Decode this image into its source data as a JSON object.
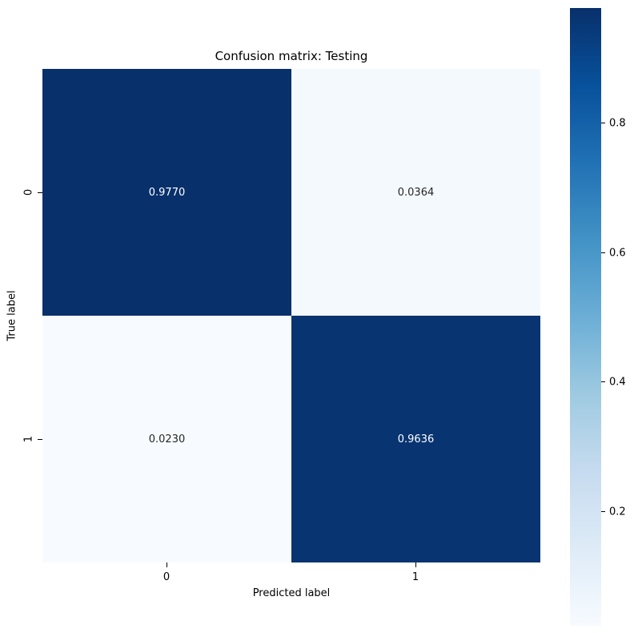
{
  "chart_data": {
    "type": "heatmap",
    "title": "Confusion matrix: Testing",
    "xlabel": "Predicted label",
    "ylabel": "True label",
    "x_categories": [
      "0",
      "1"
    ],
    "y_categories": [
      "0",
      "1"
    ],
    "values": [
      [
        0.977,
        0.0364
      ],
      [
        0.023,
        0.9636
      ]
    ],
    "cell_labels": [
      [
        "0.9770",
        "0.0364"
      ],
      [
        "0.0230",
        "0.9636"
      ]
    ],
    "cell_colors": [
      [
        "#08306b",
        "#f4f9fe"
      ],
      [
        "#f7fbff",
        "#083471"
      ]
    ],
    "cell_text_colors": [
      [
        "#ffffff",
        "#262626"
      ],
      [
        "#262626",
        "#ffffff"
      ]
    ],
    "colormap": "Blues",
    "colorbar_ticks": [
      "0.8",
      "0.6",
      "0.4",
      "0.2"
    ],
    "colorbar_gradient": [
      "#08306b",
      "#08519c",
      "#2171b5",
      "#4292c6",
      "#6baed6",
      "#9ecae1",
      "#c6dbef",
      "#deebf7",
      "#f7fbff"
    ],
    "value_range_displayed": [
      0.023,
      0.977
    ],
    "grid": false,
    "legend_position": "right-colorbar"
  }
}
